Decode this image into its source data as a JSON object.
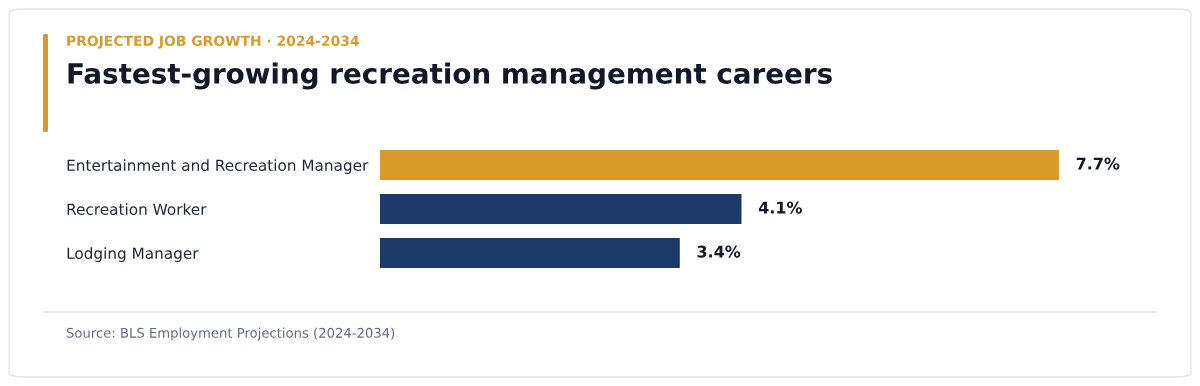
{
  "chart_data": {
    "type": "bar",
    "orientation": "horizontal",
    "subtitle": "PROJECTED JOB GROWTH · 2024-2034",
    "title": "Fastest-growing recreation management careers",
    "categories": [
      "Entertainment and Recreation Manager",
      "Recreation Worker",
      "Lodging Manager"
    ],
    "values": [
      7.7,
      4.1,
      3.4
    ],
    "colors": [
      "#d99a29",
      "#1e3a6b",
      "#1e3a6b"
    ],
    "value_labels": [
      "7.7%",
      "4.1%",
      "3.4%"
    ],
    "annotations": [
      "Source: BLS Employment Projections (2024-2034)"
    ]
  }
}
